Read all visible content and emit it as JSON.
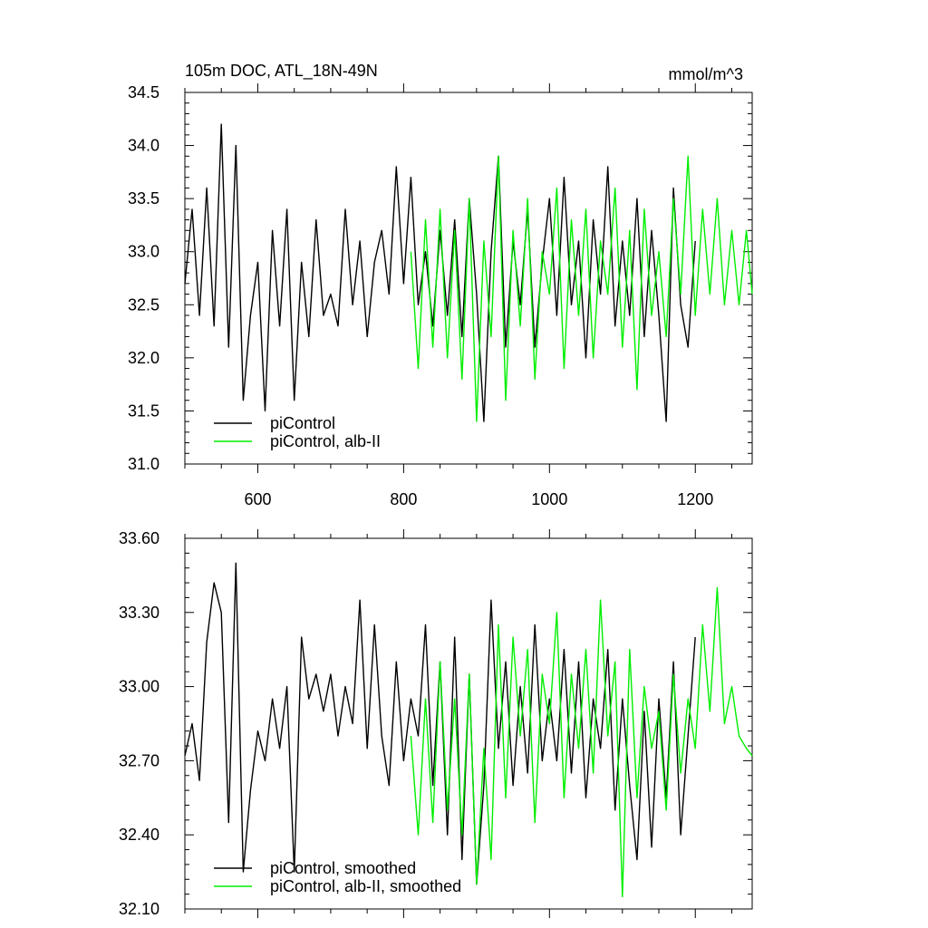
{
  "colors": {
    "piControl": "#000000",
    "alb_II": "#00ee00"
  },
  "chart_data": [
    {
      "type": "line",
      "title": "105m DOC, ATL_18N-49N",
      "units": "mmol/m^3",
      "xlabel": "",
      "ylabel": "",
      "xlim": [
        500,
        1278
      ],
      "ylim": [
        31.0,
        34.5
      ],
      "x_ticks": [
        600,
        800,
        1000,
        1200
      ],
      "x_tick_labels": [
        "600",
        "800",
        "1000",
        "1200"
      ],
      "y_ticks": [
        31.0,
        31.5,
        32.0,
        32.5,
        33.0,
        33.5,
        34.0,
        34.5
      ],
      "y_tick_labels": [
        "31.0",
        "31.5",
        "32.0",
        "32.5",
        "33.0",
        "33.5",
        "34.0",
        "34.5"
      ],
      "grid": false,
      "legend_position": "bottom-left",
      "series": [
        {
          "name": "piControl",
          "color": "#000000",
          "x": [
            500,
            510,
            520,
            530,
            540,
            550,
            560,
            570,
            580,
            590,
            600,
            610,
            620,
            630,
            640,
            650,
            660,
            670,
            680,
            690,
            700,
            710,
            720,
            730,
            740,
            750,
            760,
            770,
            780,
            790,
            800,
            810,
            820,
            830,
            840,
            850,
            860,
            870,
            880,
            890,
            900,
            910,
            920,
            930,
            940,
            950,
            960,
            970,
            980,
            990,
            1000,
            1010,
            1020,
            1030,
            1040,
            1050,
            1060,
            1070,
            1080,
            1090,
            1100,
            1110,
            1120,
            1130,
            1140,
            1150,
            1160,
            1170,
            1180,
            1190,
            1200
          ],
          "y": [
            32.7,
            33.4,
            32.4,
            33.6,
            32.3,
            34.2,
            32.1,
            34.0,
            31.6,
            32.4,
            32.9,
            31.5,
            33.2,
            32.3,
            33.4,
            31.6,
            32.9,
            32.2,
            33.3,
            32.4,
            32.6,
            32.3,
            33.4,
            32.5,
            33.1,
            32.2,
            32.9,
            33.2,
            32.6,
            33.8,
            32.7,
            33.7,
            32.5,
            33.0,
            32.3,
            33.2,
            32.4,
            33.3,
            32.2,
            33.5,
            32.6,
            31.4,
            33.0,
            33.9,
            32.1,
            33.1,
            32.5,
            33.4,
            32.1,
            32.9,
            33.5,
            32.4,
            33.7,
            32.5,
            33.1,
            32.0,
            33.3,
            32.6,
            33.8,
            32.3,
            33.1,
            32.4,
            33.5,
            32.2,
            33.2,
            32.4,
            31.4,
            33.6,
            32.5,
            32.1,
            33.1
          ]
        },
        {
          "name": "piControl, alb-II",
          "color": "#00ee00",
          "x": [
            810,
            820,
            830,
            840,
            850,
            860,
            870,
            880,
            890,
            900,
            910,
            920,
            930,
            940,
            950,
            960,
            970,
            980,
            990,
            1000,
            1010,
            1020,
            1030,
            1040,
            1050,
            1060,
            1070,
            1080,
            1090,
            1100,
            1110,
            1120,
            1130,
            1140,
            1150,
            1160,
            1170,
            1180,
            1190,
            1200,
            1210,
            1220,
            1230,
            1240,
            1250,
            1260,
            1270,
            1278
          ],
          "y": [
            33.0,
            31.9,
            33.3,
            32.1,
            33.4,
            32.0,
            33.2,
            31.8,
            33.5,
            31.4,
            33.1,
            32.2,
            33.9,
            31.6,
            33.2,
            32.3,
            33.5,
            31.8,
            33.0,
            32.6,
            33.6,
            31.9,
            33.3,
            32.4,
            33.4,
            32.0,
            33.1,
            32.6,
            33.6,
            32.1,
            33.2,
            31.7,
            33.4,
            32.4,
            33.0,
            32.2,
            33.5,
            32.6,
            33.9,
            32.4,
            33.4,
            32.6,
            33.5,
            32.5,
            33.2,
            32.5,
            33.2,
            32.6
          ]
        }
      ]
    },
    {
      "type": "line",
      "title": "",
      "units": "",
      "xlabel": "",
      "ylabel": "",
      "xlim": [
        500,
        1278
      ],
      "ylim": [
        32.1,
        33.6
      ],
      "x_ticks": [
        600,
        800,
        1000,
        1200
      ],
      "x_tick_labels": [],
      "y_ticks": [
        32.1,
        32.4,
        32.7,
        33.0,
        33.3,
        33.6
      ],
      "y_tick_labels": [
        "32.10",
        "32.40",
        "32.70",
        "33.00",
        "33.30",
        "33.60"
      ],
      "grid": false,
      "legend_position": "bottom-left",
      "series": [
        {
          "name": "piControl, smoothed",
          "color": "#000000",
          "x": [
            500,
            510,
            520,
            530,
            540,
            550,
            560,
            570,
            580,
            590,
            600,
            610,
            620,
            630,
            640,
            650,
            660,
            670,
            680,
            690,
            700,
            710,
            720,
            730,
            740,
            750,
            760,
            770,
            780,
            790,
            800,
            810,
            820,
            830,
            840,
            850,
            860,
            870,
            880,
            890,
            900,
            910,
            920,
            930,
            940,
            950,
            960,
            970,
            980,
            990,
            1000,
            1010,
            1020,
            1030,
            1040,
            1050,
            1060,
            1070,
            1080,
            1090,
            1100,
            1110,
            1120,
            1130,
            1140,
            1150,
            1160,
            1170,
            1180,
            1190,
            1200
          ],
          "y": [
            32.72,
            32.85,
            32.62,
            33.18,
            33.42,
            33.3,
            32.45,
            33.5,
            32.25,
            32.58,
            32.82,
            32.7,
            32.95,
            32.75,
            33.0,
            32.25,
            33.2,
            32.95,
            33.05,
            32.9,
            33.05,
            32.8,
            33.0,
            32.85,
            33.35,
            32.75,
            33.25,
            32.8,
            32.6,
            33.1,
            32.7,
            32.95,
            32.8,
            33.25,
            32.6,
            33.1,
            32.4,
            33.2,
            32.3,
            33.05,
            32.2,
            32.6,
            33.35,
            32.75,
            33.1,
            32.6,
            33.0,
            32.65,
            33.25,
            32.7,
            32.95,
            32.7,
            33.15,
            32.65,
            33.1,
            32.55,
            32.95,
            32.75,
            33.15,
            32.5,
            32.95,
            32.6,
            32.3,
            32.9,
            32.35,
            32.95,
            32.55,
            33.1,
            32.4,
            32.8,
            33.2
          ]
        },
        {
          "name": "piControl, alb-II, smoothed",
          "color": "#00ee00",
          "x": [
            810,
            820,
            830,
            840,
            850,
            860,
            870,
            880,
            890,
            900,
            910,
            920,
            930,
            940,
            950,
            960,
            970,
            980,
            990,
            1000,
            1010,
            1020,
            1030,
            1040,
            1050,
            1060,
            1070,
            1080,
            1090,
            1100,
            1110,
            1120,
            1130,
            1140,
            1150,
            1160,
            1170,
            1180,
            1190,
            1200,
            1210,
            1220,
            1230,
            1240,
            1250,
            1260,
            1270,
            1278
          ],
          "y": [
            32.8,
            32.4,
            32.95,
            32.45,
            33.1,
            32.5,
            32.95,
            32.4,
            33.05,
            32.2,
            32.75,
            32.3,
            33.25,
            32.55,
            33.2,
            32.8,
            33.15,
            32.45,
            33.05,
            32.85,
            33.3,
            32.55,
            33.05,
            32.75,
            33.15,
            32.65,
            33.35,
            32.8,
            33.1,
            32.15,
            33.15,
            32.55,
            33.0,
            32.75,
            32.9,
            32.5,
            33.05,
            32.65,
            32.95,
            32.75,
            33.25,
            32.9,
            33.4,
            32.85,
            33.0,
            32.8,
            32.75,
            32.72
          ]
        }
      ]
    }
  ]
}
